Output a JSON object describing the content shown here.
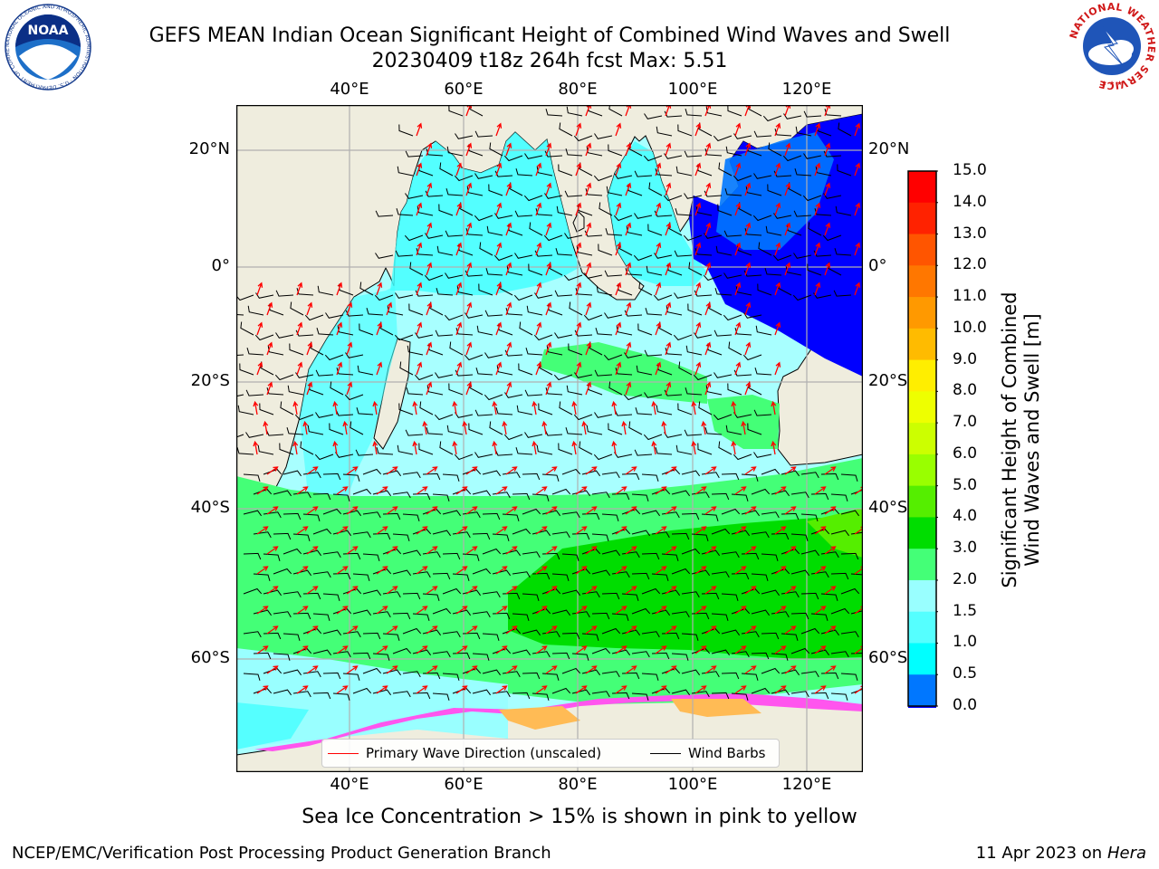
{
  "header": {
    "title_line1": "GEFS MEAN Indian Ocean Significant Height of Combined Wind Waves and Swell",
    "title_line2": "20230409 t18z 264h fcst   Max: 5.51"
  },
  "logos": {
    "noaa_text": "NOAA",
    "noaa_ring_text": "NATIONAL OCEANIC AND ATMOSPHERIC ADMINISTRATION · U.S. DEPARTMENT OF COMMERCE",
    "nws_ring_text": "NATIONAL WEATHER SERVICE"
  },
  "map": {
    "lon_labels": [
      "40°E",
      "60°E",
      "80°E",
      "100°E",
      "120°E"
    ],
    "lat_labels_left": [
      "20°N",
      "0°",
      "20°S",
      "40°S",
      "60°S"
    ],
    "lat_labels_right": [
      "20°N",
      "0°",
      "20°S",
      "40°S",
      "60°S"
    ],
    "colors": {
      "land": "#efedde",
      "ice_pink": "#ff55ee",
      "ice_orange": "#ffbb55",
      "arrow": "#ff0000",
      "barb": "#000000"
    }
  },
  "legend": {
    "primary_wave": "Primary Wave Direction (unscaled)",
    "wind_barbs": "Wind Barbs",
    "primary_wave_color": "#ff0000",
    "wind_barbs_color": "#000000"
  },
  "colorbar": {
    "title_line1": "Significant Height of Combined",
    "title_line2": "Wind Waves and Swell [m]",
    "labels": [
      "15.0",
      "14.0",
      "13.0",
      "12.0",
      "11.0",
      "10.0",
      "9.0",
      "8.0",
      "7.0",
      "6.0",
      "5.0",
      "4.0",
      "3.0",
      "2.0",
      "1.5",
      "1.0",
      "0.5",
      "0.0"
    ],
    "colors_top_to_bottom": [
      "#ff0000",
      "#ff2200",
      "#ff5500",
      "#ff7700",
      "#ff9900",
      "#ffbb00",
      "#ffee00",
      "#eeff00",
      "#ccff00",
      "#99ff00",
      "#55ee00",
      "#00dd00",
      "#44ff77",
      "#99ffff",
      "#55ffff",
      "#00ffff",
      "#0077ff",
      "#0000ff"
    ]
  },
  "footer": {
    "ice_note": "Sea Ice Concentration > 15% is shown in pink to yellow",
    "left": "NCEP/EMC/Verification Post Processing Product Generation Branch",
    "date": "11 Apr 2023 on",
    "host": "Hera"
  }
}
